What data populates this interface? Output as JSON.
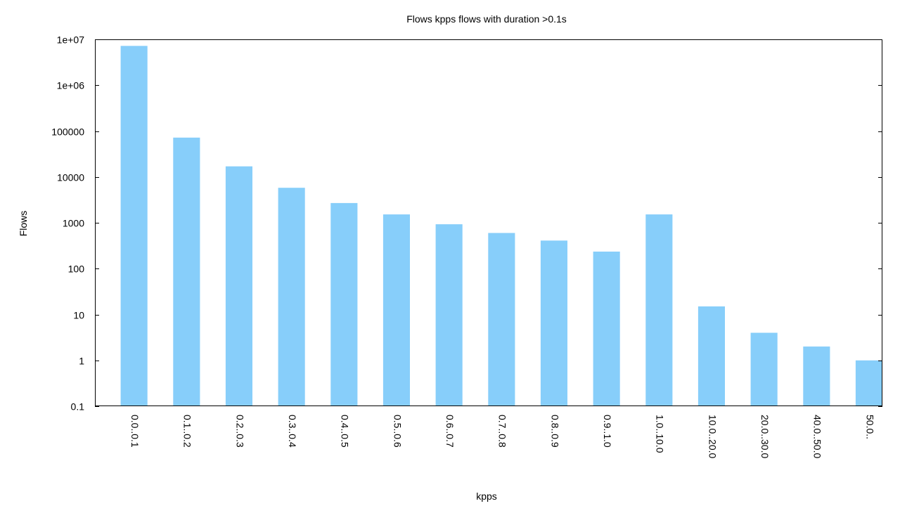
{
  "chart_data": {
    "type": "bar",
    "title": "Flows kpps flows with duration >0.1s",
    "xlabel": "kpps",
    "ylabel": "Flows",
    "yscale": "log",
    "ylim": [
      0.1,
      10000000
    ],
    "grid": false,
    "yticks": [
      "0.1",
      "1",
      "10",
      "100",
      "1000",
      "10000",
      "100000",
      "1e+06",
      "1e+07"
    ],
    "bar_color": "#87cefa",
    "categories": [
      "0.0..0.1",
      "0.1..0.2",
      "0.2..0.3",
      "0.3..0.4",
      "0.4..0.5",
      "0.5..0.6",
      "0.6..0.7",
      "0.7..0.8",
      "0.8..0.9",
      "0.9..1.0",
      "1.0..10.0",
      "10.0..20.0",
      "20.0..30.0",
      "40.0..50.0",
      "50.0.."
    ],
    "values": [
      7200000,
      72000,
      17000,
      5800,
      2700,
      1520,
      930,
      600,
      410,
      235,
      1520,
      15,
      4,
      2,
      1
    ]
  }
}
